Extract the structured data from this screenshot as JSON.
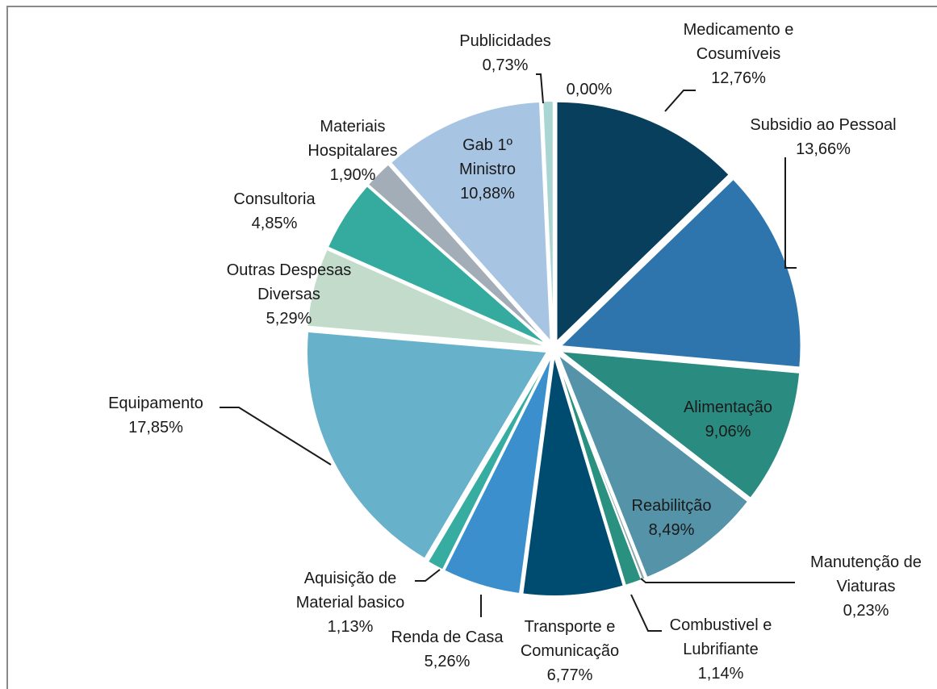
{
  "chart_data": {
    "type": "pie",
    "categories": [
      "Medicamento e Cosumíveis",
      "Subsidio ao Pessoal",
      "Alimentação",
      "Reabilitção",
      "Manutenção de Viaturas",
      "Combustivel e Lubrifiante",
      "Transporte e Comunicação",
      "Renda de Casa",
      "Aquisição de Material basico",
      "Equipamento",
      "Outras Despesas Diversas",
      "Consultoria",
      "Materiais Hospitalares",
      "Gab 1º Ministro",
      "Publicidades",
      null
    ],
    "values": [
      12.76,
      13.66,
      9.06,
      8.49,
      0.23,
      1.14,
      6.77,
      5.26,
      1.13,
      17.85,
      5.29,
      4.85,
      1.9,
      10.88,
      0.73,
      0.0
    ],
    "value_labels": [
      "12,76%",
      "13,66%",
      "9,06%",
      "8,49%",
      "0,23%",
      "1,14%",
      "6,77%",
      "5,26%",
      "1,13%",
      "17,85%",
      "5,29%",
      "4,85%",
      "1,90%",
      "10,88%",
      "0,73%",
      "0,00%"
    ],
    "colors": [
      "#073f5c",
      "#2e75ad",
      "#2a8c80",
      "#5593a8",
      "#8aa6a9",
      "#2a9080",
      "#004c70",
      "#3a8fcc",
      "#36ada0",
      "#67b1ca",
      "#c2dbcb",
      "#35ab9f",
      "#a3adb8",
      "#a7c5e3",
      "#a9d5d3",
      "#cccccc"
    ]
  }
}
